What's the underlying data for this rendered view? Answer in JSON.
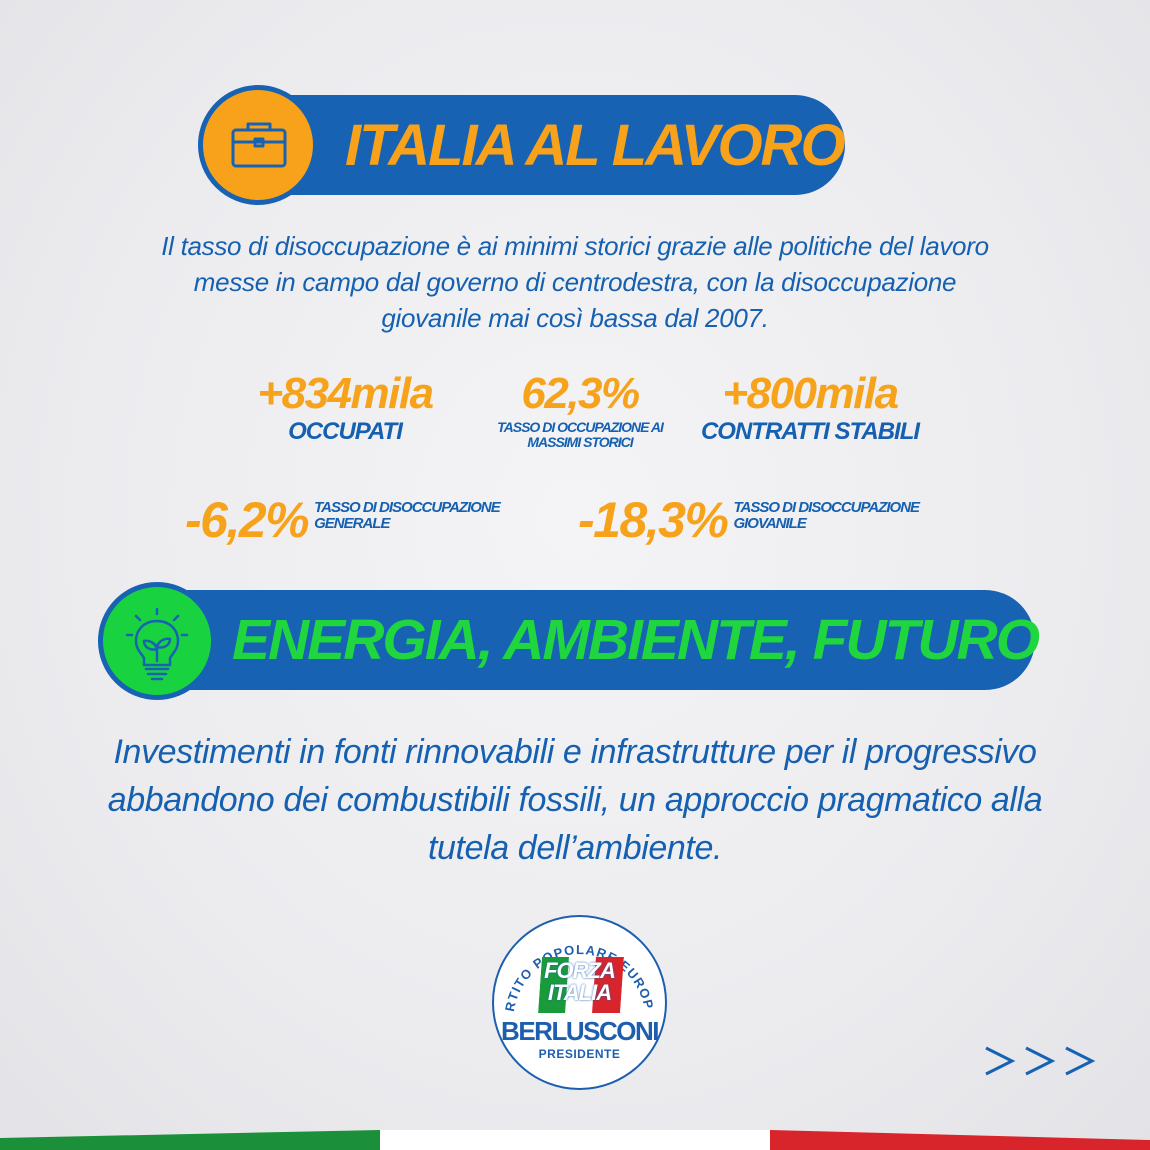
{
  "sections": {
    "lavoro": {
      "title": "ITALIA AL LAVORO",
      "icon": "briefcase-icon",
      "paragraph_lines": [
        "Il tasso di disoccupazione è ai minimi storici grazie alle politiche del lavoro",
        "messe in campo dal governo di centrodestra, con la disoccupazione",
        "giovanile mai così bassa dal 2007."
      ],
      "stats": {
        "occupati": {
          "value": "+834mila",
          "label": "OCCUPATI"
        },
        "tasso_occupazione": {
          "value": "62,3%",
          "label": "TASSO DI OCCUPAZIONE AI MASSIMI STORICI"
        },
        "contratti": {
          "value": "+800mila",
          "label": "CONTRATTI STABILI"
        },
        "disocc_generale": {
          "value": "-6,2%",
          "label_line1": "TASSO DI DISOCCUPAZIONE",
          "label_line2": "GENERALE"
        },
        "disocc_giovanile": {
          "value": "-18,3%",
          "label_line1": "TASSO DI DISOCCUPAZIONE",
          "label_line2": "GIOVANILE"
        }
      }
    },
    "energia": {
      "title": "ENERGIA, AMBIENTE, FUTURO",
      "icon": "eco-lightbulb-icon",
      "paragraph_lines": [
        "Investimenti in fonti rinnovabili e infrastrutture per il progressivo",
        "abbandono dei combustibili fossili, un approccio pragmatico alla",
        "tutela dell’ambiente."
      ]
    }
  },
  "logo": {
    "ring_text": "PARTITO POPOLARE EUROPEO",
    "line1": "FORZA",
    "line2": "ITALIA",
    "name": "BERLUSCONI",
    "subtitle": "PRESIDENTE"
  },
  "colors": {
    "blue": "#1762b3",
    "orange": "#f8a11b",
    "green": "#1fd63f"
  },
  "next_icon": "triple-chevron-right-icon"
}
